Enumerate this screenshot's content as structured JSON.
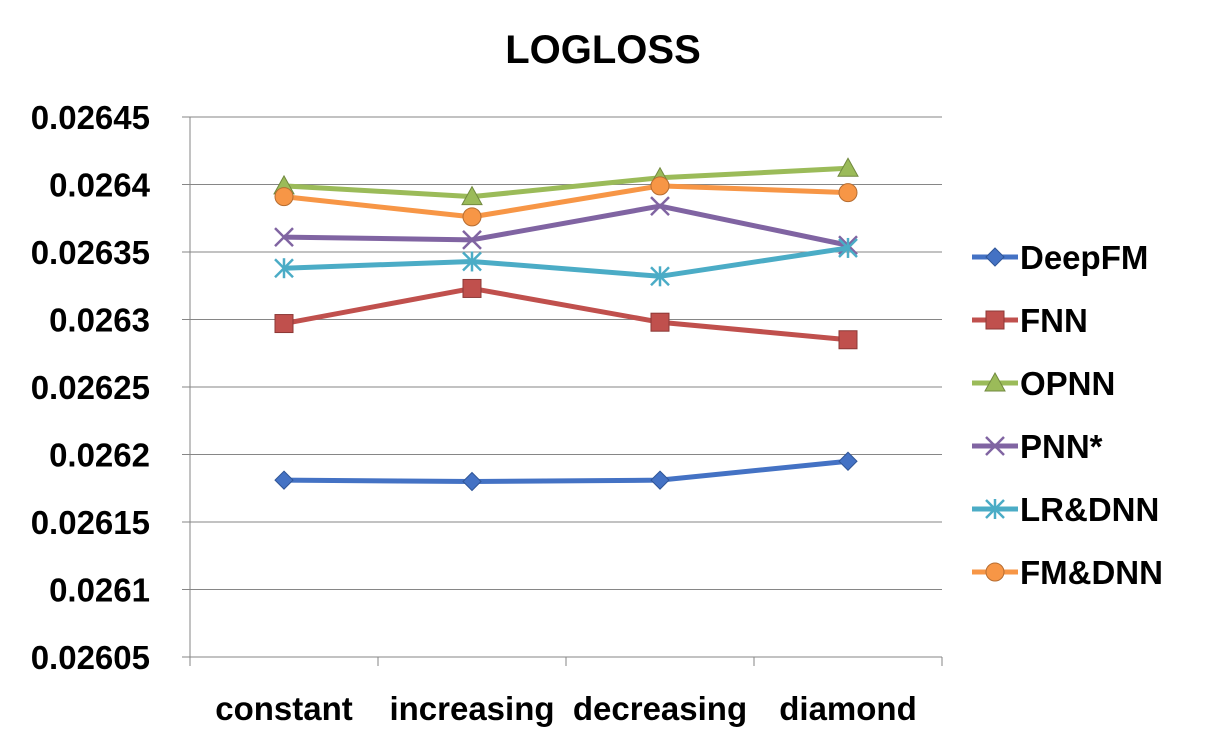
{
  "chart_data": {
    "type": "line",
    "title": "LOGLOSS",
    "xlabel": "",
    "ylabel": "",
    "categories": [
      "constant",
      "increasing",
      "decreasing",
      "diamond"
    ],
    "ylim": [
      0.02605,
      0.02645
    ],
    "yticks": [
      "0.02605",
      "0.0261",
      "0.02615",
      "0.0262",
      "0.02625",
      "0.0263",
      "0.02635",
      "0.0264",
      "0.02645"
    ],
    "ytick_values": [
      0.02605,
      0.0261,
      0.02615,
      0.0262,
      0.02625,
      0.0263,
      0.02635,
      0.0264,
      0.02645
    ],
    "grid": "horizontal",
    "legend_position": "right",
    "series": [
      {
        "name": "DeepFM",
        "values": [
          0.026181,
          0.02618,
          0.026181,
          0.026195
        ],
        "color": "#4472C4",
        "marker": "diamond"
      },
      {
        "name": "FNN",
        "values": [
          0.026297,
          0.026323,
          0.026298,
          0.026285
        ],
        "color": "#C0504D",
        "marker": "square"
      },
      {
        "name": "OPNN",
        "values": [
          0.026399,
          0.026391,
          0.026405,
          0.026412
        ],
        "color": "#9BBB59",
        "marker": "triangle"
      },
      {
        "name": "PNN*",
        "values": [
          0.026361,
          0.026359,
          0.026384,
          0.026355
        ],
        "color": "#8064A2",
        "marker": "x"
      },
      {
        "name": "LR&DNN",
        "values": [
          0.026338,
          0.026343,
          0.026332,
          0.026353
        ],
        "color": "#4BACC6",
        "marker": "star"
      },
      {
        "name": "FM&DNN",
        "values": [
          0.026391,
          0.026376,
          0.026399,
          0.026394
        ],
        "color": "#F79646",
        "marker": "circle"
      }
    ]
  }
}
